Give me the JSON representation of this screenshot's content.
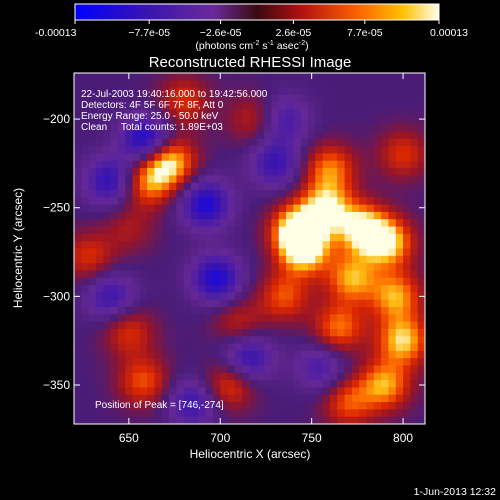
{
  "chart_data": {
    "type": "heatmap",
    "title": "Reconstructed RHESSI Image",
    "xlabel": "Heliocentric X (arcsec)",
    "ylabel": "Heliocentric Y (arcsec)",
    "xlim": [
      620,
      812
    ],
    "ylim": [
      -372,
      -174
    ],
    "x_ticks": [
      650,
      700,
      750,
      800
    ],
    "y_ticks": [
      -200,
      -250,
      -300,
      -350
    ],
    "colorbar": {
      "min": -0.00013,
      "max": 0.00013,
      "tick_labels": [
        "-0.00013",
        "−7.7e-05",
        "−2.6e-05",
        "2.6e-05",
        "7.7e-05",
        "0.00013"
      ],
      "tick_values": [
        -0.00013,
        -7.7e-05,
        -2.6e-05,
        2.6e-05,
        7.7e-05,
        0.00013
      ],
      "unit_text": "(photons cm",
      "unit_parts": [
        "(photons cm",
        "-2",
        " s",
        "-1",
        " asec",
        "-2",
        ")"
      ]
    },
    "annotations": {
      "time_range": "22-Jul-2003 19:40:16.000 to 19:42:56.000",
      "detectors": "Detectors: 4F 5F 6F 7F 8F, Att 0",
      "energy": "Energy Range: 25.0 - 50.0 keV",
      "clean": "Clean     Total counts: 1.89E+03",
      "peak": "Position of Peak = [746,-274]"
    },
    "peak": [
      746,
      -274
    ],
    "footer_date": "1-Jun-2013 12:32",
    "blobs": [
      {
        "x": 672,
        "y": -224,
        "v": 1.0
      },
      {
        "x": 660,
        "y": -236,
        "v": 0.7
      },
      {
        "x": 742,
        "y": -262,
        "v": 1.0
      },
      {
        "x": 746,
        "y": -274,
        "v": 1.0
      },
      {
        "x": 758,
        "y": -250,
        "v": 0.9
      },
      {
        "x": 778,
        "y": -262,
        "v": 1.0
      },
      {
        "x": 792,
        "y": -270,
        "v": 0.9
      },
      {
        "x": 772,
        "y": -290,
        "v": 0.8
      },
      {
        "x": 796,
        "y": -300,
        "v": 0.8
      },
      {
        "x": 800,
        "y": -325,
        "v": 0.9
      },
      {
        "x": 760,
        "y": -228,
        "v": 0.7
      },
      {
        "x": 735,
        "y": -300,
        "v": 0.6
      },
      {
        "x": 765,
        "y": -318,
        "v": 0.7
      },
      {
        "x": 790,
        "y": -350,
        "v": 0.8
      },
      {
        "x": 770,
        "y": -360,
        "v": 0.6
      },
      {
        "x": 650,
        "y": -320,
        "v": 0.5
      },
      {
        "x": 658,
        "y": -348,
        "v": 0.6
      },
      {
        "x": 705,
        "y": -350,
        "v": 0.6
      },
      {
        "x": 710,
        "y": -315,
        "v": 0.4
      },
      {
        "x": 628,
        "y": -278,
        "v": 0.5
      },
      {
        "x": 680,
        "y": -190,
        "v": 0.5
      },
      {
        "x": 718,
        "y": -200,
        "v": 0.4
      },
      {
        "x": 800,
        "y": -220,
        "v": 0.5
      },
      {
        "x": 650,
        "y": -262,
        "v": 0.3
      },
      {
        "x": 660,
        "y": -212,
        "v": -0.9
      },
      {
        "x": 692,
        "y": -248,
        "v": -0.8
      },
      {
        "x": 640,
        "y": -235,
        "v": -0.7
      },
      {
        "x": 698,
        "y": -290,
        "v": -0.8
      },
      {
        "x": 715,
        "y": -335,
        "v": -0.7
      },
      {
        "x": 685,
        "y": -360,
        "v": -0.6
      },
      {
        "x": 640,
        "y": -300,
        "v": -0.6
      },
      {
        "x": 730,
        "y": -225,
        "v": -0.6
      },
      {
        "x": 755,
        "y": -340,
        "v": -0.5
      },
      {
        "x": 735,
        "y": -200,
        "v": -0.5
      }
    ]
  }
}
